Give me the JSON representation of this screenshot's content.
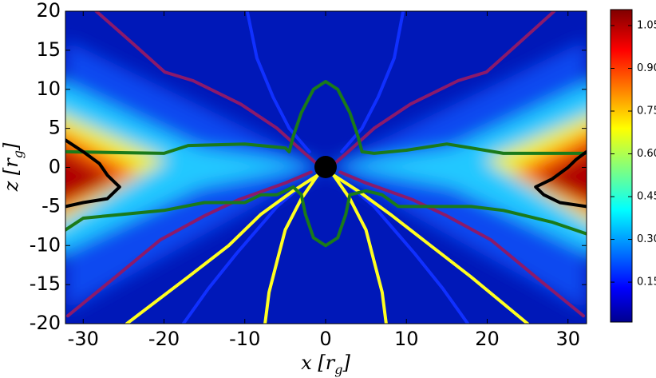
{
  "chart_data": {
    "type": "contour",
    "x_label": [
      "x [r",
      "g",
      "]"
    ],
    "y_label": [
      "z [r",
      "g",
      "]"
    ],
    "xlim": [
      -32.2,
      32.3
    ],
    "ylim": [
      -20,
      20
    ],
    "xticks": [
      -30,
      -20,
      -10,
      0,
      10,
      20,
      30
    ],
    "yticks": [
      -20,
      -15,
      -10,
      -5,
      0,
      5,
      10,
      15,
      20
    ],
    "colorbar": {
      "colormap": "jet",
      "clim": [
        0.01,
        1.106
      ],
      "ticks": [
        0.15,
        {
          "value": 0.3,
          "label": "0.30"
        },
        0.45,
        {
          "value": 0.6,
          "label": "0.60"
        },
        0.75,
        {
          "value": 0.9,
          "label": "0.90"
        },
        1.05
      ]
    },
    "contours": [
      {
        "color": "#8b1a6b",
        "x": [
          -28.4,
          -24,
          -19.9,
          -16.4,
          -10.5,
          -6,
          -2.8,
          -0.8
        ],
        "z": [
          20,
          16,
          12.2,
          11.1,
          8.1,
          5,
          2,
          0.2
        ]
      },
      {
        "color": "#8b1a6b",
        "x": [
          28.3,
          24,
          19.9,
          16.4,
          10.5,
          6,
          2.8,
          0.8
        ],
        "z": [
          20,
          16,
          12.2,
          11.1,
          8.1,
          5,
          2,
          0.2
        ]
      },
      {
        "color": "#8b1a6b",
        "x": [
          -31.9,
          -26,
          -20.5,
          -15,
          -10.7,
          -5,
          -1.8
        ],
        "z": [
          -19,
          -14,
          -9.3,
          -6.2,
          -4.1,
          -2,
          -0.6
        ]
      },
      {
        "color": "#8b1a6b",
        "x": [
          31.9,
          26,
          20.5,
          15,
          10.7,
          5,
          1.8
        ],
        "z": [
          -19,
          -14,
          -9.3,
          -6.2,
          -4.1,
          -2,
          -0.6
        ]
      },
      {
        "color": "#1030ff",
        "x": [
          -9.7,
          -8.5,
          -6.5,
          -4.5,
          -2
        ],
        "z": [
          20,
          14,
          9,
          5,
          2
        ]
      },
      {
        "color": "#1030ff",
        "x": [
          9.6,
          8.5,
          6.5,
          4.5,
          2
        ],
        "z": [
          20,
          14,
          9,
          5,
          2
        ]
      },
      {
        "color": "#1030ff",
        "x": [
          -17.6,
          -14.5,
          -11,
          -6,
          -2
        ],
        "z": [
          -20,
          -15.5,
          -11,
          -5,
          -1.5
        ]
      },
      {
        "color": "#1030ff",
        "x": [
          17.6,
          14.5,
          11,
          6,
          2
        ],
        "z": [
          -20,
          -15.5,
          -11,
          -5,
          -1.5
        ]
      },
      {
        "color": "#ffff20",
        "x": [
          -1,
          -4,
          -8,
          -12,
          -17,
          -24.6
        ],
        "z": [
          -1,
          -3,
          -6,
          -10,
          -14,
          -20
        ]
      },
      {
        "color": "#ffff20",
        "x": [
          -1,
          -3,
          -5,
          -6,
          -7,
          -7.5
        ],
        "z": [
          -1,
          -4,
          -8,
          -12,
          -16,
          -20
        ]
      },
      {
        "color": "#ffff20",
        "x": [
          1,
          3,
          5,
          6,
          7,
          7.5
        ],
        "z": [
          -1,
          -4,
          -8,
          -12,
          -16,
          -20
        ]
      },
      {
        "color": "#ffff20",
        "x": [
          1,
          4,
          8,
          13,
          18,
          25
        ],
        "z": [
          -1,
          -3,
          -6,
          -10,
          -14,
          -20
        ]
      },
      {
        "color": "#1a7a1a",
        "x": [
          -32.2,
          -20,
          -17,
          -10,
          -5,
          -4.5,
          -4,
          -3,
          -1.5,
          0,
          1.5,
          3,
          4,
          4.5,
          6,
          10,
          15,
          18,
          22,
          32.3
        ],
        "z": [
          2,
          1.8,
          2.8,
          3,
          2.5,
          2,
          4,
          7,
          10,
          11,
          10,
          7,
          4,
          2,
          1.8,
          2.2,
          3,
          2.5,
          1.8,
          1.8
        ]
      },
      {
        "color": "#1a7a1a",
        "x": [
          -32.2,
          -30,
          -25,
          -20,
          -15,
          -10,
          -8,
          -6,
          -4,
          -3,
          -2.5,
          -1.5,
          0,
          1.5,
          2.5,
          3,
          5,
          7,
          9,
          12,
          18,
          22,
          28,
          32.3
        ],
        "z": [
          -8,
          -6.5,
          -6,
          -5.5,
          -4.5,
          -4.5,
          -3.5,
          -3.5,
          -2.5,
          -3.5,
          -6,
          -9,
          -10,
          -9,
          -6,
          -3.5,
          -3,
          -3.5,
          -5,
          -5,
          -5,
          -5.5,
          -7,
          -8.5
        ]
      },
      {
        "color": "#000000",
        "x": [
          -32.2,
          -30,
          -28,
          -27,
          -25.5,
          -27,
          -30,
          -32.2
        ],
        "z": [
          3.5,
          2,
          0.5,
          -1,
          -2.5,
          -4,
          -4.5,
          -5
        ]
      },
      {
        "color": "#000000",
        "x": [
          32.3,
          31,
          30,
          28,
          26,
          27,
          29,
          32.3
        ],
        "z": [
          2,
          1,
          0,
          -1.5,
          -2.5,
          -3.5,
          -4.5,
          -5
        ]
      }
    ]
  }
}
